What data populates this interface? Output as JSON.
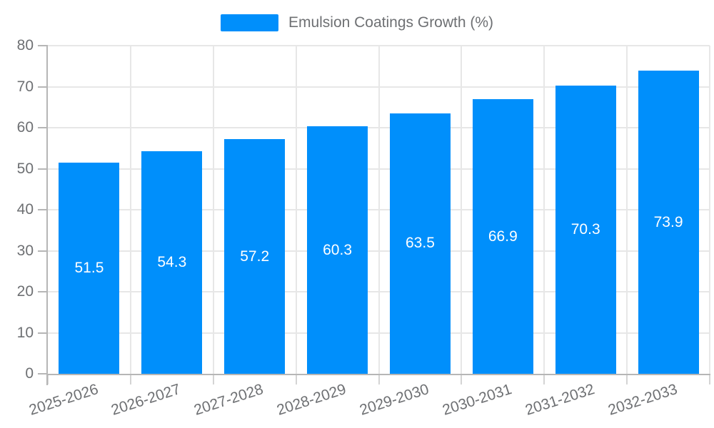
{
  "chart_data": {
    "type": "bar",
    "title": "Emulsion Coatings Growth (%)",
    "series_name": "Emulsion Coatings Growth (%)",
    "categories": [
      "2025-2026",
      "2026-2027",
      "2027-2028",
      "2028-2029",
      "2029-2030",
      "2030-2031",
      "2031-2032",
      "2032-2033"
    ],
    "values": [
      51.5,
      54.3,
      57.2,
      60.3,
      63.5,
      66.9,
      70.3,
      73.9
    ],
    "xlabel": "",
    "ylabel": "",
    "ylim": [
      0,
      80
    ],
    "ytick_step": 10,
    "yticks": [
      0,
      10,
      20,
      30,
      40,
      50,
      60,
      70,
      80
    ],
    "grid": true,
    "legend_position": "top",
    "value_labels_shown": true,
    "x_label_rotation_deg": -18,
    "colors": {
      "bar": "#008FFB",
      "grid_line": "#e7e7e7",
      "axis_line": "#b6b6b6",
      "tick": "#d4d4d4",
      "axis_label": "#6e7073",
      "value_label": "#ffffff",
      "background": "#ffffff"
    }
  }
}
